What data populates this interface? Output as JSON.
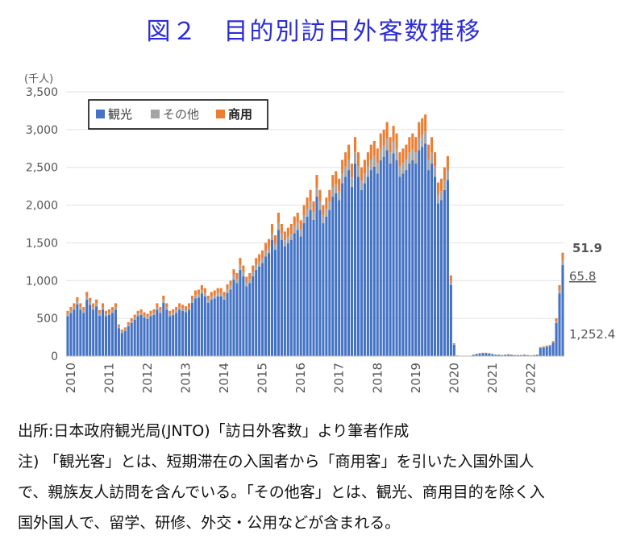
{
  "title": "図２　目的別訪日外客数推移",
  "chart_data": {
    "type": "bar",
    "stacked": true,
    "unit": "(千人)",
    "ylim": [
      0,
      3500
    ],
    "yticks": [
      "0",
      "500",
      "1,000",
      "1,500",
      "2,000",
      "2,500",
      "3,000",
      "3,500"
    ],
    "years": [
      "2010",
      "2011",
      "2012",
      "2013",
      "2014",
      "2015",
      "2016",
      "2017",
      "2018",
      "2019",
      "2020",
      "2021",
      "2022"
    ],
    "series": [
      {
        "name": "観光",
        "color": "#4472c4"
      },
      {
        "name": "その他",
        "color": "#a5a5a5"
      },
      {
        "name": "商用",
        "color": "#ed7d31"
      }
    ],
    "totals": [
      600,
      650,
      700,
      780,
      700,
      650,
      850,
      770,
      700,
      750,
      610,
      700,
      600,
      620,
      650,
      700,
      420,
      350,
      380,
      450,
      500,
      550,
      600,
      620,
      580,
      560,
      600,
      620,
      700,
      650,
      800,
      700,
      600,
      620,
      650,
      700,
      680,
      660,
      700,
      800,
      870,
      880,
      940,
      900,
      800,
      850,
      870,
      900,
      900,
      850,
      950,
      1000,
      1150,
      1100,
      1300,
      1200,
      1050,
      1100,
      1200,
      1300,
      1350,
      1400,
      1500,
      1550,
      1750,
      1600,
      1900,
      1750,
      1650,
      1700,
      1750,
      1850,
      1900,
      1800,
      2000,
      2100,
      2200,
      2050,
      2400,
      2200,
      2000,
      2100,
      2200,
      2400,
      2450,
      2350,
      2600,
      2700,
      2800,
      2550,
      2900,
      2700,
      2500,
      2600,
      2700,
      2800,
      2850,
      2750,
      2950,
      3000,
      3100,
      2900,
      3050,
      2950,
      2700,
      2750,
      2800,
      2900,
      2950,
      2900,
      3100,
      3150,
      3200,
      2800,
      2900,
      2700,
      2300,
      2350,
      2500,
      2650,
      1070,
      170,
      10,
      5,
      5,
      5,
      5,
      20,
      30,
      40,
      45,
      45,
      40,
      30,
      20,
      20,
      15,
      20,
      25,
      20,
      15,
      15,
      15,
      20,
      15,
      10,
      15,
      20,
      120,
      130,
      140,
      150,
      200,
      500,
      940,
      1370
    ],
    "label_values": [
      {
        "text": "51.9",
        "series": "商用"
      },
      {
        "text": "65.8",
        "series": "その他"
      },
      {
        "text": "1,252.4",
        "series": "観光"
      }
    ]
  },
  "source": "出所:日本政府観光局(JNTO)「訪日外客数」より筆者作成",
  "note_lines": [
    "注) 「観光客」とは、短期滞在の入国者から「商用客」を引いた入国外国人",
    "で、親族友人訪問を含んでいる。「その他客」とは、観光、商用目的を除く入",
    "国外国人で、留学、研修、外交・公用などが含まれる。"
  ]
}
